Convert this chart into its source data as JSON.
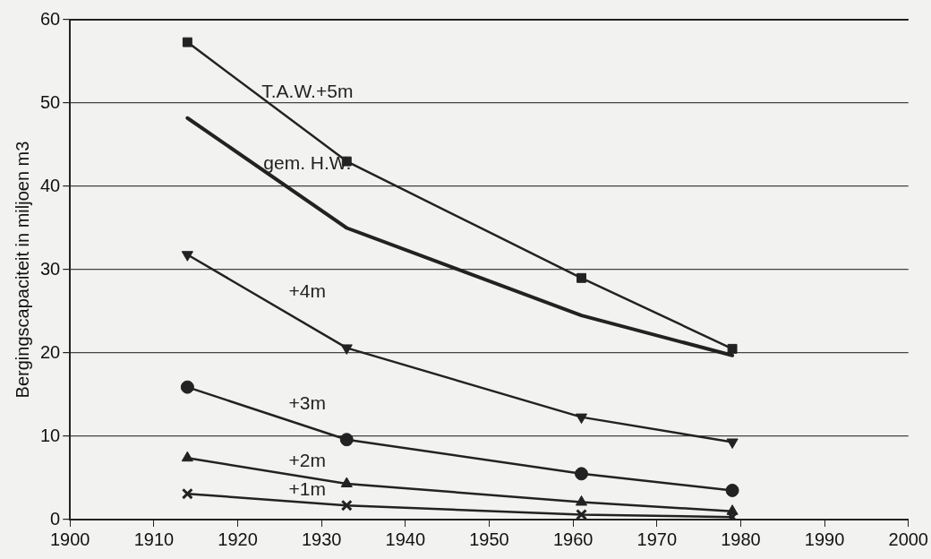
{
  "chart_data": {
    "type": "line",
    "ylabel": "Bergingscapaciteit in miljoen m3",
    "x": [
      1914,
      1933,
      1961,
      1979
    ],
    "series": [
      {
        "name": "T.A.W.+5m",
        "color": "#222222",
        "marker": "square",
        "values": [
          57.3,
          43,
          29,
          20.5
        ]
      },
      {
        "name": "gem. H.W.",
        "color": "#222222",
        "marker": "none",
        "values": [
          48.2,
          35,
          24.5,
          19.7
        ]
      },
      {
        "name": "+4m",
        "color": "#222222",
        "marker": "triangle-down",
        "values": [
          31.8,
          20.6,
          12.3,
          9.3
        ]
      },
      {
        "name": "+3m",
        "color": "#222222",
        "marker": "circle",
        "values": [
          15.9,
          9.6,
          5.5,
          3.5
        ]
      },
      {
        "name": "+2m",
        "color": "#222222",
        "marker": "triangle",
        "values": [
          7.4,
          4.3,
          2.1,
          1.0
        ]
      },
      {
        "name": "+1m",
        "color": "#222222",
        "marker": "cross",
        "values": [
          3.1,
          1.7,
          0.6,
          0.3
        ]
      }
    ],
    "xlim": [
      1900,
      2000
    ],
    "xticks": [
      1900,
      1910,
      1920,
      1930,
      1940,
      1950,
      1960,
      1970,
      1980,
      1990,
      2000
    ],
    "ylim": [
      0,
      60
    ],
    "yticks": [
      0,
      10,
      20,
      30,
      40,
      50,
      60
    ],
    "grid": "y",
    "legend": false
  }
}
